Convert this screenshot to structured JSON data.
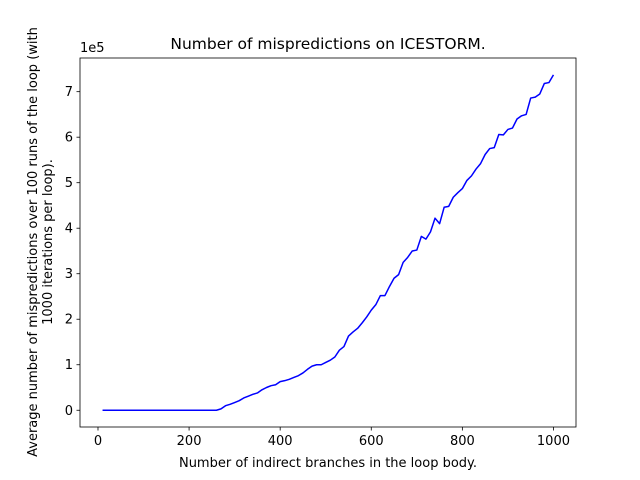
{
  "chart_data": {
    "type": "line",
    "title": "Number of mispredictions on ICESTORM.",
    "xlabel": "Number of indirect branches in the loop body.",
    "ylabel": [
      "Average number of mispredictions over 100 runs of the loop (with",
      "1000 iterations per loop)."
    ],
    "y_offset_label": "1e5",
    "xlim": [
      -39.5,
      1049.5
    ],
    "xticks": [
      0,
      200,
      400,
      600,
      800,
      1000
    ],
    "ylim": [
      -0.368,
      7.74
    ],
    "yticks": [
      0,
      1,
      2,
      3,
      4,
      5,
      6,
      7
    ],
    "grid": false,
    "x": [
      10,
      20,
      30,
      40,
      50,
      60,
      70,
      80,
      90,
      100,
      110,
      120,
      130,
      140,
      150,
      160,
      170,
      180,
      190,
      200,
      210,
      220,
      230,
      240,
      250,
      260,
      270,
      280,
      290,
      300,
      310,
      320,
      330,
      340,
      350,
      360,
      370,
      380,
      390,
      400,
      410,
      420,
      430,
      440,
      450,
      460,
      470,
      480,
      490,
      500,
      510,
      520,
      530,
      540,
      550,
      560,
      570,
      580,
      590,
      600,
      610,
      620,
      630,
      640,
      650,
      660,
      670,
      680,
      690,
      700,
      710,
      720,
      730,
      740,
      750,
      760,
      770,
      780,
      790,
      800,
      810,
      820,
      830,
      840,
      850,
      860,
      870,
      880,
      890,
      900,
      910,
      920,
      930,
      940,
      950,
      960,
      970,
      980,
      990,
      1000
    ],
    "series": [
      {
        "name": "mispredictions",
        "color": "#0000ff",
        "values": [
          0,
          0,
          0,
          0,
          0,
          0,
          0,
          0,
          0,
          0,
          0,
          0,
          0,
          0,
          0,
          0,
          0,
          0,
          0,
          0,
          0,
          0,
          0,
          0,
          0,
          0,
          0.03,
          0.1,
          0.13,
          0.17,
          0.21,
          0.27,
          0.31,
          0.35,
          0.38,
          0.45,
          0.5,
          0.54,
          0.56,
          0.63,
          0.65,
          0.68,
          0.72,
          0.76,
          0.82,
          0.9,
          0.97,
          1.0,
          1.0,
          1.05,
          1.1,
          1.17,
          1.32,
          1.4,
          1.63,
          1.72,
          1.8,
          1.92,
          2.05,
          2.2,
          2.32,
          2.52,
          2.52,
          2.72,
          2.9,
          2.98,
          3.25,
          3.36,
          3.5,
          3.52,
          3.82,
          3.76,
          3.92,
          4.22,
          4.1,
          4.46,
          4.48,
          4.68,
          4.78,
          4.87,
          5.05,
          5.15,
          5.3,
          5.42,
          5.62,
          5.75,
          5.77,
          6.06,
          6.05,
          6.17,
          6.2,
          6.4,
          6.47,
          6.5,
          6.86,
          6.88,
          6.95,
          7.18,
          7.2,
          7.37
        ]
      }
    ]
  }
}
